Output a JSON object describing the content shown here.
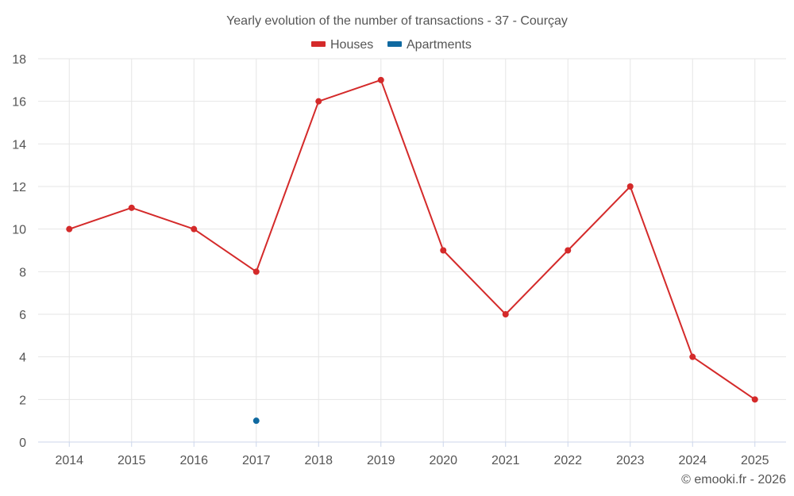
{
  "chart_data": {
    "type": "line",
    "title": "Yearly evolution of the number of transactions - 37 - Courçay",
    "categories": [
      "2014",
      "2015",
      "2016",
      "2017",
      "2018",
      "2019",
      "2020",
      "2021",
      "2022",
      "2023",
      "2024",
      "2025"
    ],
    "series": [
      {
        "name": "Houses",
        "color": "#d42a2a",
        "values": [
          10,
          11,
          10,
          8,
          16,
          17,
          9,
          6,
          9,
          12,
          4,
          2
        ]
      },
      {
        "name": "Apartments",
        "color": "#0f69a0",
        "values": [
          null,
          null,
          null,
          1,
          null,
          null,
          null,
          null,
          null,
          null,
          null,
          null
        ]
      }
    ],
    "ylim": [
      0,
      18
    ],
    "yticks": [
      0,
      2,
      4,
      6,
      8,
      10,
      12,
      14,
      16,
      18
    ],
    "xlabel": "",
    "ylabel": "",
    "grid": true,
    "legend_position": "top-center"
  },
  "credit": "© emooki.fr - 2026"
}
